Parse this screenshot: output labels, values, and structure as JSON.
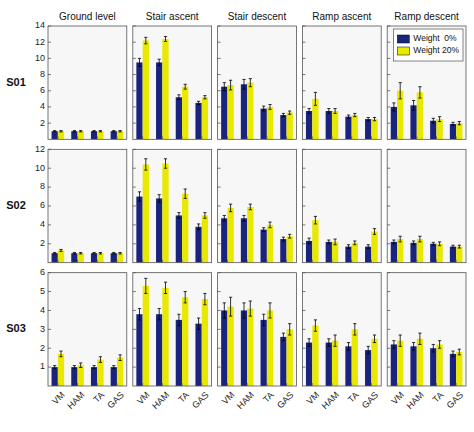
{
  "chart_data": [
    {
      "type": "bar",
      "title": "Ground level",
      "ylabel": "S01",
      "categories": [
        "VM",
        "HAM",
        "TA",
        "GAS"
      ],
      "series": [
        {
          "color": "#1a237e",
          "values": [
            1.0,
            1.0,
            1.0,
            1.0
          ],
          "errors": [
            0.08,
            0.08,
            0.08,
            0.08
          ]
        },
        {
          "color": "#e8e800",
          "values": [
            1.0,
            1.0,
            1.0,
            1.0
          ],
          "errors": [
            0.08,
            0.08,
            0.08,
            0.08
          ]
        }
      ],
      "ylim": [
        0,
        14
      ],
      "yticks": [
        2,
        4,
        6,
        8,
        10,
        12,
        14
      ],
      "tick_labels": "y"
    },
    {
      "type": "bar",
      "title": "Stair ascent",
      "categories": [
        "VM",
        "HAM",
        "TA",
        "GAS"
      ],
      "series": [
        {
          "color": "#1a237e",
          "values": [
            9.5,
            9.5,
            5.2,
            4.5
          ],
          "errors": [
            0.5,
            0.4,
            0.3,
            0.2
          ]
        },
        {
          "color": "#e8e800",
          "values": [
            12.2,
            12.4,
            6.5,
            5.2
          ],
          "errors": [
            0.4,
            0.3,
            0.3,
            0.2
          ]
        }
      ],
      "ylim": [
        0,
        14
      ],
      "yticks": [
        2,
        4,
        6,
        8,
        10,
        12,
        14
      ],
      "tick_labels": false
    },
    {
      "type": "bar",
      "title": "Stair descent",
      "categories": [
        "VM",
        "HAM",
        "TA",
        "GAS"
      ],
      "series": [
        {
          "color": "#1a237e",
          "values": [
            6.5,
            6.8,
            3.8,
            3.0
          ],
          "errors": [
            0.5,
            0.6,
            0.3,
            0.2
          ]
        },
        {
          "color": "#e8e800",
          "values": [
            6.7,
            7.0,
            4.0,
            3.3
          ],
          "errors": [
            0.6,
            0.5,
            0.3,
            0.2
          ]
        }
      ],
      "ylim": [
        0,
        14
      ],
      "yticks": [
        2,
        4,
        6,
        8,
        10,
        12,
        14
      ],
      "tick_labels": false
    },
    {
      "type": "bar",
      "title": "Ramp ascent",
      "categories": [
        "VM",
        "HAM",
        "TA",
        "GAS"
      ],
      "series": [
        {
          "color": "#1a237e",
          "values": [
            3.5,
            3.5,
            2.8,
            2.5
          ],
          "errors": [
            0.3,
            0.3,
            0.2,
            0.2
          ]
        },
        {
          "color": "#e8e800",
          "values": [
            5.0,
            3.5,
            3.0,
            2.5
          ],
          "errors": [
            0.8,
            0.3,
            0.2,
            0.2
          ]
        }
      ],
      "ylim": [
        0,
        14
      ],
      "yticks": [
        2,
        4,
        6,
        8,
        10,
        12,
        14
      ],
      "tick_labels": false
    },
    {
      "type": "bar",
      "title": "Ramp descent",
      "categories": [
        "VM",
        "HAM",
        "TA",
        "GAS"
      ],
      "series": [
        {
          "name": "Weight  0%",
          "color": "#1a237e",
          "values": [
            4.0,
            4.2,
            2.3,
            1.9
          ],
          "errors": [
            0.5,
            0.6,
            0.3,
            0.2
          ]
        },
        {
          "name": "Weight 20%",
          "color": "#e8e800",
          "values": [
            6.0,
            5.8,
            2.5,
            2.0
          ],
          "errors": [
            1.0,
            0.7,
            0.3,
            0.2
          ]
        }
      ],
      "ylim": [
        0,
        14
      ],
      "yticks": [
        2,
        4,
        6,
        8,
        10,
        12,
        14
      ],
      "tick_labels": false,
      "legend": "upper right"
    },
    {
      "type": "bar",
      "ylabel": "S02",
      "categories": [
        "VM",
        "HAM",
        "TA",
        "GAS"
      ],
      "series": [
        {
          "color": "#1a237e",
          "values": [
            1.0,
            1.0,
            1.0,
            1.0
          ],
          "errors": [
            0.08,
            0.08,
            0.08,
            0.08
          ]
        },
        {
          "color": "#e8e800",
          "values": [
            1.3,
            1.0,
            1.0,
            1.0
          ],
          "errors": [
            0.1,
            0.08,
            0.08,
            0.08
          ]
        }
      ],
      "ylim": [
        0,
        12
      ],
      "yticks": [
        2,
        4,
        6,
        8,
        10,
        12
      ],
      "tick_labels": "y"
    },
    {
      "type": "bar",
      "categories": [
        "VM",
        "HAM",
        "TA",
        "GAS"
      ],
      "series": [
        {
          "color": "#1a237e",
          "values": [
            7.0,
            6.8,
            5.0,
            3.8
          ],
          "errors": [
            0.5,
            0.4,
            0.3,
            0.3
          ]
        },
        {
          "color": "#e8e800",
          "values": [
            10.4,
            10.5,
            7.3,
            5.0
          ],
          "errors": [
            0.6,
            0.5,
            0.5,
            0.3
          ]
        }
      ],
      "ylim": [
        0,
        12
      ],
      "yticks": [
        2,
        4,
        6,
        8,
        10,
        12
      ],
      "tick_labels": false
    },
    {
      "type": "bar",
      "categories": [
        "VM",
        "HAM",
        "TA",
        "GAS"
      ],
      "series": [
        {
          "color": "#1a237e",
          "values": [
            4.7,
            4.7,
            3.5,
            2.5
          ],
          "errors": [
            0.3,
            0.3,
            0.2,
            0.2
          ]
        },
        {
          "color": "#e8e800",
          "values": [
            5.8,
            5.9,
            4.0,
            2.8
          ],
          "errors": [
            0.4,
            0.3,
            0.3,
            0.2
          ]
        }
      ],
      "ylim": [
        0,
        12
      ],
      "yticks": [
        2,
        4,
        6,
        8,
        10,
        12
      ],
      "tick_labels": false
    },
    {
      "type": "bar",
      "categories": [
        "VM",
        "HAM",
        "TA",
        "GAS"
      ],
      "series": [
        {
          "color": "#1a237e",
          "values": [
            2.3,
            2.2,
            1.7,
            1.7
          ],
          "errors": [
            0.3,
            0.2,
            0.2,
            0.2
          ]
        },
        {
          "color": "#e8e800",
          "values": [
            4.5,
            2.2,
            2.1,
            3.3
          ],
          "errors": [
            0.4,
            0.3,
            0.2,
            0.3
          ]
        }
      ],
      "ylim": [
        0,
        12
      ],
      "yticks": [
        2,
        4,
        6,
        8,
        10,
        12
      ],
      "tick_labels": false
    },
    {
      "type": "bar",
      "categories": [
        "VM",
        "HAM",
        "TA",
        "GAS"
      ],
      "series": [
        {
          "color": "#1a237e",
          "values": [
            2.2,
            2.1,
            2.0,
            1.7
          ],
          "errors": [
            0.2,
            0.2,
            0.15,
            0.15
          ]
        },
        {
          "color": "#e8e800",
          "values": [
            2.5,
            2.5,
            2.0,
            1.7
          ],
          "errors": [
            0.3,
            0.3,
            0.2,
            0.15
          ]
        }
      ],
      "ylim": [
        0,
        12
      ],
      "yticks": [
        2,
        4,
        6,
        8,
        10,
        12
      ],
      "tick_labels": false
    },
    {
      "type": "bar",
      "ylabel": "S03",
      "categories": [
        "VM",
        "HAM",
        "TA",
        "GAS"
      ],
      "series": [
        {
          "color": "#1a237e",
          "values": [
            1.0,
            1.0,
            1.0,
            1.0
          ],
          "errors": [
            0.08,
            0.08,
            0.08,
            0.08
          ]
        },
        {
          "color": "#e8e800",
          "values": [
            1.7,
            1.1,
            1.4,
            1.5
          ],
          "errors": [
            0.15,
            0.12,
            0.15,
            0.15
          ]
        }
      ],
      "ylim": [
        0,
        6
      ],
      "yticks": [
        1,
        2,
        3,
        4,
        5,
        6
      ]
    },
    {
      "type": "bar",
      "categories": [
        "VM",
        "HAM",
        "TA",
        "GAS"
      ],
      "series": [
        {
          "color": "#1a237e",
          "values": [
            3.8,
            3.8,
            3.5,
            3.3
          ],
          "errors": [
            0.3,
            0.3,
            0.3,
            0.3
          ]
        },
        {
          "color": "#e8e800",
          "values": [
            5.3,
            5.2,
            4.7,
            4.6
          ],
          "errors": [
            0.4,
            0.3,
            0.3,
            0.3
          ]
        }
      ],
      "ylim": [
        0,
        6
      ],
      "yticks": [
        1,
        2,
        3,
        4,
        5,
        6
      ],
      "tick_labels": "x"
    },
    {
      "type": "bar",
      "categories": [
        "VM",
        "HAM",
        "TA",
        "GAS"
      ],
      "series": [
        {
          "color": "#1a237e",
          "values": [
            4.0,
            4.0,
            3.5,
            2.6
          ],
          "errors": [
            0.4,
            0.4,
            0.3,
            0.2
          ]
        },
        {
          "color": "#e8e800",
          "values": [
            4.2,
            4.1,
            4.0,
            3.0
          ],
          "errors": [
            0.5,
            0.4,
            0.4,
            0.3
          ]
        }
      ],
      "ylim": [
        0,
        6
      ],
      "yticks": [
        1,
        2,
        3,
        4,
        5,
        6
      ],
      "tick_labels": "x"
    },
    {
      "type": "bar",
      "categories": [
        "VM",
        "HAM",
        "TA",
        "GAS"
      ],
      "series": [
        {
          "color": "#1a237e",
          "values": [
            2.3,
            2.3,
            2.1,
            1.9
          ],
          "errors": [
            0.2,
            0.2,
            0.2,
            0.2
          ]
        },
        {
          "color": "#e8e800",
          "values": [
            3.2,
            2.4,
            3.0,
            2.5
          ],
          "errors": [
            0.3,
            0.3,
            0.3,
            0.2
          ]
        }
      ],
      "ylim": [
        0,
        6
      ],
      "yticks": [
        1,
        2,
        3,
        4,
        5,
        6
      ],
      "tick_labels": "x"
    },
    {
      "type": "bar",
      "categories": [
        "VM",
        "HAM",
        "TA",
        "GAS"
      ],
      "series": [
        {
          "color": "#1a237e",
          "values": [
            2.2,
            2.1,
            2.0,
            1.7
          ],
          "errors": [
            0.2,
            0.2,
            0.2,
            0.15
          ]
        },
        {
          "color": "#e8e800",
          "values": [
            2.4,
            2.5,
            2.2,
            1.8
          ],
          "errors": [
            0.3,
            0.3,
            0.2,
            0.15
          ]
        }
      ],
      "ylim": [
        0,
        6
      ],
      "yticks": [
        1,
        2,
        3,
        4,
        5,
        6
      ],
      "tick_labels": "x"
    }
  ]
}
